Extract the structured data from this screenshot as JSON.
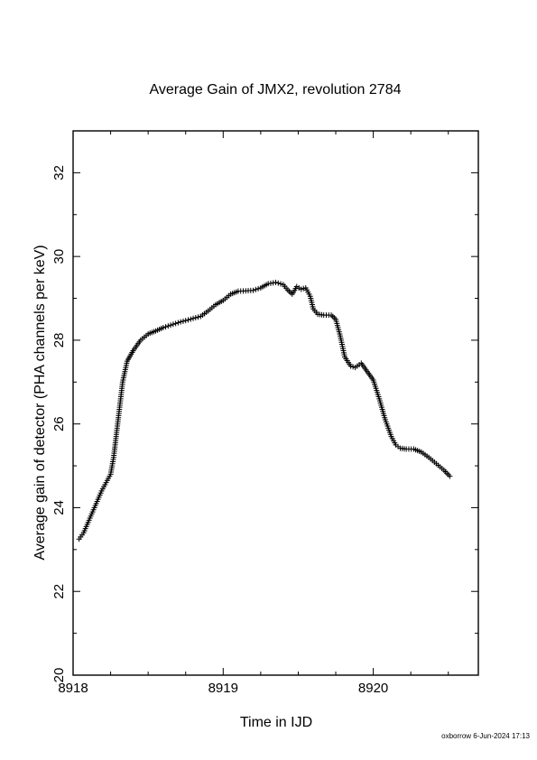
{
  "chart_data": {
    "type": "scatter",
    "marker": "plus",
    "title": "Average Gain of JMX2, revolution 2784",
    "xlabel": "Time in IJD",
    "ylabel": "Average gain of detector (PHA channels per keV)",
    "xlim": [
      8918.0,
      8920.7
    ],
    "ylim": [
      20,
      33
    ],
    "xticks": [
      8918,
      8919,
      8920
    ],
    "yticks": [
      20,
      22,
      24,
      26,
      28,
      30,
      32
    ],
    "grid": false,
    "footer": "oxborrow  6-Jun-2024 17:13",
    "series": [
      {
        "points": [
          [
            8918.04,
            23.25
          ],
          [
            8918.07,
            23.4
          ],
          [
            8918.1,
            23.65
          ],
          [
            8918.13,
            23.9
          ],
          [
            8918.16,
            24.15
          ],
          [
            8918.19,
            24.4
          ],
          [
            8918.22,
            24.6
          ],
          [
            8918.25,
            24.8
          ],
          [
            8918.27,
            25.2
          ],
          [
            8918.29,
            25.8
          ],
          [
            8918.31,
            26.4
          ],
          [
            8918.33,
            27.0
          ],
          [
            8918.36,
            27.5
          ],
          [
            8918.4,
            27.75
          ],
          [
            8918.45,
            28.0
          ],
          [
            8918.5,
            28.15
          ],
          [
            8918.55,
            28.22
          ],
          [
            8918.6,
            28.3
          ],
          [
            8918.65,
            28.36
          ],
          [
            8918.7,
            28.42
          ],
          [
            8918.75,
            28.47
          ],
          [
            8918.8,
            28.52
          ],
          [
            8918.85,
            28.57
          ],
          [
            8918.9,
            28.7
          ],
          [
            8918.95,
            28.85
          ],
          [
            8919.0,
            28.95
          ],
          [
            8919.05,
            29.1
          ],
          [
            8919.1,
            29.17
          ],
          [
            8919.15,
            29.18
          ],
          [
            8919.2,
            29.19
          ],
          [
            8919.25,
            29.25
          ],
          [
            8919.3,
            29.35
          ],
          [
            8919.35,
            29.38
          ],
          [
            8919.4,
            29.33
          ],
          [
            8919.43,
            29.2
          ],
          [
            8919.46,
            29.1
          ],
          [
            8919.49,
            29.28
          ],
          [
            8919.52,
            29.22
          ],
          [
            8919.55,
            29.25
          ],
          [
            8919.58,
            29.05
          ],
          [
            8919.6,
            28.75
          ],
          [
            8919.63,
            28.62
          ],
          [
            8919.67,
            28.6
          ],
          [
            8919.72,
            28.6
          ],
          [
            8919.75,
            28.5
          ],
          [
            8919.78,
            28.1
          ],
          [
            8919.81,
            27.6
          ],
          [
            8919.85,
            27.38
          ],
          [
            8919.88,
            27.35
          ],
          [
            8919.92,
            27.45
          ],
          [
            8919.96,
            27.25
          ],
          [
            8920.0,
            27.05
          ],
          [
            8920.04,
            26.6
          ],
          [
            8920.08,
            26.1
          ],
          [
            8920.12,
            25.7
          ],
          [
            8920.15,
            25.5
          ],
          [
            8920.18,
            25.42
          ],
          [
            8920.22,
            25.4
          ],
          [
            8920.27,
            25.4
          ],
          [
            8920.32,
            25.33
          ],
          [
            8920.37,
            25.2
          ],
          [
            8920.42,
            25.05
          ],
          [
            8920.47,
            24.9
          ],
          [
            8920.51,
            24.75
          ]
        ]
      }
    ]
  }
}
